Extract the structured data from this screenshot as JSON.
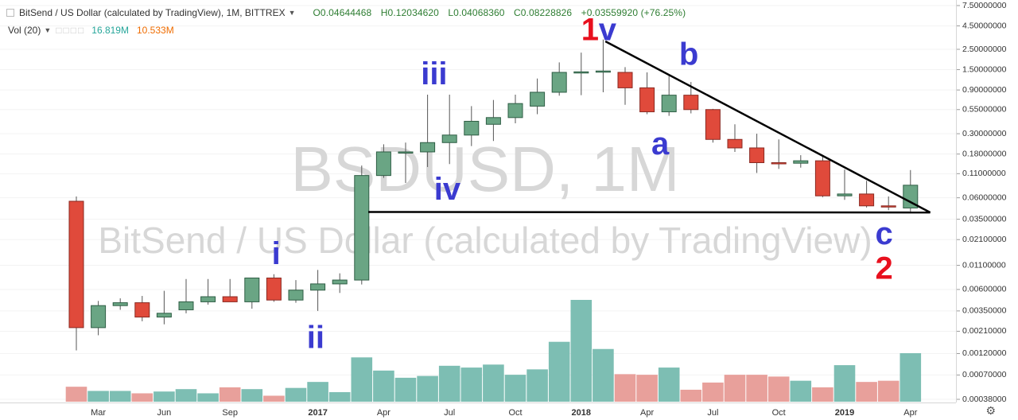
{
  "header": {
    "title": "BitSend / US Dollar (calculated by TradingView), 1M, BITTREX",
    "open": "O0.04644468",
    "high": "H0.12034620",
    "low": "L0.04068360",
    "close": "C0.08228826",
    "change": "+0.03559920 (+76.25%)"
  },
  "volume_legend": {
    "label": "Vol (20)",
    "value1": "16.819M",
    "value2": "10.533M"
  },
  "watermark": {
    "symbol": "BSDUSD, 1M",
    "name": "BitSend / US Dollar (calculated by TradingView)"
  },
  "colors": {
    "up": "#6aa584",
    "down": "#e04a3b",
    "up_border": "#2f5e45",
    "down_border": "#8a2a22",
    "vol_up": "#7dbeb3",
    "vol_down": "#e8a09b",
    "wave_blue": "#3b3bd0",
    "wave_red": "#e8101e"
  },
  "chart_data": {
    "type": "candlestick",
    "interval": "1M",
    "y_scale": "log",
    "ylim": [
      0.00038,
      7.5
    ],
    "y_ticks": [
      {
        "label": "7.50000000",
        "value": 7.5
      },
      {
        "label": "4.50000000",
        "value": 4.5
      },
      {
        "label": "2.50000000",
        "value": 2.5
      },
      {
        "label": "1.50000000",
        "value": 1.5
      },
      {
        "label": "0.90000000",
        "value": 0.9
      },
      {
        "label": "0.55000000",
        "value": 0.55
      },
      {
        "label": "0.30000000",
        "value": 0.3
      },
      {
        "label": "0.18000000",
        "value": 0.18
      },
      {
        "label": "0.11000000",
        "value": 0.11
      },
      {
        "label": "0.06000000",
        "value": 0.06
      },
      {
        "label": "0.03500000",
        "value": 0.035
      },
      {
        "label": "0.02100000",
        "value": 0.021
      },
      {
        "label": "0.01100000",
        "value": 0.011
      },
      {
        "label": "0.00600000",
        "value": 0.006
      },
      {
        "label": "0.00350000",
        "value": 0.0035
      },
      {
        "label": "0.00210000",
        "value": 0.0021
      },
      {
        "label": "0.00120000",
        "value": 0.0012
      },
      {
        "label": "0.00070000",
        "value": 0.0007
      },
      {
        "label": "0.00038000",
        "value": 0.00038
      }
    ],
    "x_ticks": [
      {
        "label": "Mar",
        "index": 1,
        "bold": false
      },
      {
        "label": "Jun",
        "index": 4,
        "bold": false
      },
      {
        "label": "Sep",
        "index": 7,
        "bold": false
      },
      {
        "label": "2017",
        "index": 11,
        "bold": true
      },
      {
        "label": "Apr",
        "index": 14,
        "bold": false
      },
      {
        "label": "Jul",
        "index": 17,
        "bold": false
      },
      {
        "label": "Oct",
        "index": 20,
        "bold": false
      },
      {
        "label": "2018",
        "index": 23,
        "bold": true
      },
      {
        "label": "Apr",
        "index": 26,
        "bold": false
      },
      {
        "label": "Jul",
        "index": 29,
        "bold": false
      },
      {
        "label": "Oct",
        "index": 32,
        "bold": false
      },
      {
        "label": "2019",
        "index": 35,
        "bold": true
      },
      {
        "label": "Apr",
        "index": 38,
        "bold": false
      }
    ],
    "candles": [
      {
        "o": 0.055,
        "h": 0.062,
        "l": 0.0013,
        "c": 0.0023
      },
      {
        "o": 0.0023,
        "h": 0.0045,
        "l": 0.0019,
        "c": 0.004
      },
      {
        "o": 0.004,
        "h": 0.0048,
        "l": 0.0036,
        "c": 0.0043
      },
      {
        "o": 0.0043,
        "h": 0.0051,
        "l": 0.0027,
        "c": 0.003
      },
      {
        "o": 0.003,
        "h": 0.0058,
        "l": 0.0025,
        "c": 0.0033
      },
      {
        "o": 0.0036,
        "h": 0.0078,
        "l": 0.0033,
        "c": 0.0044
      },
      {
        "o": 0.0044,
        "h": 0.0078,
        "l": 0.0041,
        "c": 0.005
      },
      {
        "o": 0.005,
        "h": 0.0078,
        "l": 0.0046,
        "c": 0.0044
      },
      {
        "o": 0.0044,
        "h": 0.008,
        "l": 0.0037,
        "c": 0.008
      },
      {
        "o": 0.008,
        "h": 0.0088,
        "l": 0.0044,
        "c": 0.0046
      },
      {
        "o": 0.0046,
        "h": 0.0076,
        "l": 0.0043,
        "c": 0.0059
      },
      {
        "o": 0.0059,
        "h": 0.0098,
        "l": 0.0035,
        "c": 0.0069
      },
      {
        "o": 0.0069,
        "h": 0.009,
        "l": 0.0055,
        "c": 0.0076
      },
      {
        "o": 0.0076,
        "h": 0.135,
        "l": 0.0068,
        "c": 0.105
      },
      {
        "o": 0.105,
        "h": 0.23,
        "l": 0.099,
        "c": 0.19
      },
      {
        "o": 0.19,
        "h": 0.24,
        "l": 0.087,
        "c": 0.19
      },
      {
        "o": 0.19,
        "h": 0.8,
        "l": 0.13,
        "c": 0.24
      },
      {
        "o": 0.24,
        "h": 0.8,
        "l": 0.14,
        "c": 0.29
      },
      {
        "o": 0.29,
        "h": 0.6,
        "l": 0.22,
        "c": 0.41
      },
      {
        "o": 0.38,
        "h": 0.7,
        "l": 0.25,
        "c": 0.45
      },
      {
        "o": 0.45,
        "h": 0.8,
        "l": 0.39,
        "c": 0.64
      },
      {
        "o": 0.6,
        "h": 1.2,
        "l": 0.49,
        "c": 0.85
      },
      {
        "o": 0.85,
        "h": 1.8,
        "l": 0.78,
        "c": 1.4
      },
      {
        "o": 1.4,
        "h": 2.3,
        "l": 0.79,
        "c": 1.42
      },
      {
        "o": 1.42,
        "h": 3.2,
        "l": 0.85,
        "c": 1.45
      },
      {
        "o": 1.4,
        "h": 1.6,
        "l": 0.62,
        "c": 0.95
      },
      {
        "o": 0.95,
        "h": 1.4,
        "l": 0.49,
        "c": 0.52
      },
      {
        "o": 0.52,
        "h": 1.3,
        "l": 0.47,
        "c": 0.79
      },
      {
        "o": 0.79,
        "h": 1.1,
        "l": 0.5,
        "c": 0.55
      },
      {
        "o": 0.55,
        "h": 0.56,
        "l": 0.24,
        "c": 0.26
      },
      {
        "o": 0.26,
        "h": 0.38,
        "l": 0.19,
        "c": 0.21
      },
      {
        "o": 0.21,
        "h": 0.3,
        "l": 0.112,
        "c": 0.145
      },
      {
        "o": 0.145,
        "h": 0.26,
        "l": 0.124,
        "c": 0.143
      },
      {
        "o": 0.143,
        "h": 0.175,
        "l": 0.128,
        "c": 0.152
      },
      {
        "o": 0.152,
        "h": 0.17,
        "l": 0.061,
        "c": 0.063
      },
      {
        "o": 0.063,
        "h": 0.122,
        "l": 0.057,
        "c": 0.066
      },
      {
        "o": 0.066,
        "h": 0.092,
        "l": 0.047,
        "c": 0.049
      },
      {
        "o": 0.049,
        "h": 0.062,
        "l": 0.044,
        "c": 0.048
      },
      {
        "o": 0.04644468,
        "h": 0.1203462,
        "l": 0.0406836,
        "c": 0.08228826
      }
    ],
    "volume": [
      0.25,
      0.18,
      0.18,
      0.14,
      0.17,
      0.21,
      0.14,
      0.24,
      0.21,
      0.1,
      0.23,
      0.33,
      0.16,
      0.74,
      0.52,
      0.4,
      0.43,
      0.6,
      0.57,
      0.62,
      0.45,
      0.54,
      1.0,
      1.7,
      0.88,
      0.46,
      0.45,
      0.57,
      0.2,
      0.32,
      0.45,
      0.45,
      0.42,
      0.35,
      0.24,
      0.61,
      0.33,
      0.35,
      0.81
    ],
    "lines": [
      {
        "from": {
          "i": 13.3,
          "v": 0.042
        },
        "to": {
          "i": 38.9,
          "v": 0.0415
        }
      },
      {
        "from": {
          "i": 24.1,
          "v": 3.05
        },
        "to": {
          "i": 38.9,
          "v": 0.0415
        }
      }
    ],
    "annotations": [
      {
        "text": "1",
        "i": 23.4,
        "v": 3.9,
        "color": "red"
      },
      {
        "text": "v",
        "i": 24.2,
        "v": 3.9,
        "color": "blue"
      },
      {
        "text": "b",
        "i": 27.9,
        "v": 2.1,
        "color": "blue"
      },
      {
        "text": "iii",
        "i": 16.3,
        "v": 1.28,
        "color": "blue"
      },
      {
        "text": "a",
        "i": 26.6,
        "v": 0.22,
        "color": "blue"
      },
      {
        "text": "iv",
        "i": 16.9,
        "v": 0.071,
        "color": "blue"
      },
      {
        "text": "i",
        "i": 9.1,
        "v": 0.014,
        "color": "blue"
      },
      {
        "text": "c",
        "i": 36.8,
        "v": 0.023,
        "color": "blue"
      },
      {
        "text": "2",
        "i": 36.8,
        "v": 0.0097,
        "color": "red"
      },
      {
        "text": "ii",
        "i": 10.9,
        "v": 0.0017,
        "color": "blue"
      }
    ]
  }
}
